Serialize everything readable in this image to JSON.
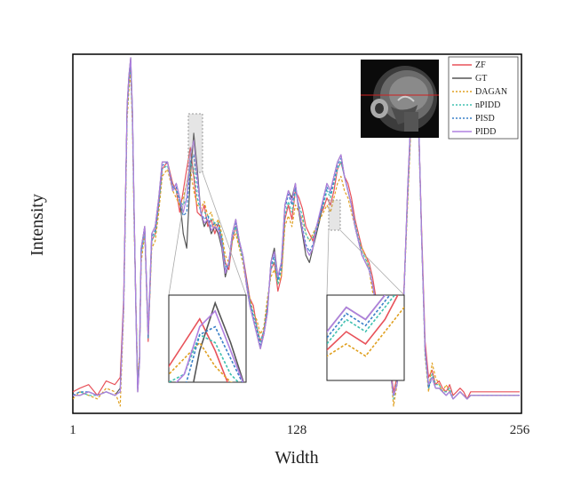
{
  "chart_data": {
    "type": "line",
    "title": "",
    "xlabel": "Width",
    "ylabel": "Intensity",
    "xlim": [
      1,
      256
    ],
    "xticks": [
      "1",
      "128",
      "256"
    ],
    "ylim": [
      0,
      1
    ],
    "grid": false,
    "legend_position": "top-right (inside plot, beside inset MRI image)",
    "inset_image": "sagittal brain MRI slice with horizontal red line marking the profiled row",
    "zoom_insets": 2,
    "x": [
      1,
      5,
      10,
      15,
      20,
      25,
      28,
      30,
      32,
      33,
      34,
      35,
      36,
      37,
      38,
      39,
      40,
      42,
      44,
      46,
      48,
      50,
      52,
      55,
      58,
      60,
      62,
      64,
      66,
      68,
      70,
      72,
      74,
      76,
      78,
      80,
      82,
      84,
      86,
      88,
      90,
      92,
      94,
      96,
      98,
      100,
      102,
      104,
      106,
      108,
      110,
      112,
      114,
      116,
      118,
      120,
      122,
      124,
      126,
      128,
      130,
      132,
      134,
      136,
      138,
      140,
      142,
      144,
      146,
      148,
      150,
      152,
      154,
      156,
      158,
      160,
      162,
      164,
      166,
      168,
      170,
      172,
      174,
      176,
      178,
      180,
      182,
      184,
      186,
      188,
      190,
      192,
      194,
      196,
      198,
      200,
      202,
      204,
      206,
      208,
      210,
      212,
      214,
      216,
      218,
      220,
      222,
      224,
      226,
      228,
      230,
      235,
      240,
      245,
      250,
      256
    ],
    "series": [
      {
        "name": "ZF",
        "color": "#e8525a",
        "dash": "solid",
        "values": [
          0.06,
          0.07,
          0.08,
          0.05,
          0.09,
          0.08,
          0.1,
          0.32,
          0.85,
          0.92,
          0.98,
          0.82,
          0.55,
          0.3,
          0.08,
          0.15,
          0.45,
          0.52,
          0.2,
          0.48,
          0.5,
          0.58,
          0.68,
          0.7,
          0.64,
          0.62,
          0.56,
          0.62,
          0.68,
          0.74,
          0.66,
          0.56,
          0.55,
          0.58,
          0.52,
          0.54,
          0.5,
          0.53,
          0.48,
          0.42,
          0.4,
          0.48,
          0.52,
          0.47,
          0.44,
          0.38,
          0.32,
          0.3,
          0.24,
          0.2,
          0.23,
          0.3,
          0.4,
          0.42,
          0.34,
          0.38,
          0.54,
          0.58,
          0.54,
          0.62,
          0.6,
          0.57,
          0.52,
          0.5,
          0.48,
          0.52,
          0.55,
          0.57,
          0.6,
          0.58,
          0.62,
          0.68,
          0.7,
          0.66,
          0.64,
          0.6,
          0.54,
          0.5,
          0.46,
          0.44,
          0.42,
          0.38,
          0.32,
          0.26,
          0.22,
          0.18,
          0.14,
          0.06,
          0.1,
          0.2,
          0.35,
          0.6,
          0.82,
          0.9,
          0.86,
          0.52,
          0.2,
          0.1,
          0.12,
          0.08,
          0.09,
          0.07,
          0.06,
          0.08,
          0.05,
          0.06,
          0.07,
          0.06,
          0.04,
          0.06,
          0.06,
          0.06,
          0.06,
          0.06,
          0.06,
          0.06
        ]
      },
      {
        "name": "GT",
        "color": "#555555",
        "dash": "solid",
        "values": [
          0.05,
          0.05,
          0.06,
          0.05,
          0.06,
          0.05,
          0.07,
          0.3,
          0.86,
          0.94,
          0.99,
          0.84,
          0.56,
          0.28,
          0.06,
          0.14,
          0.46,
          0.52,
          0.22,
          0.5,
          0.52,
          0.6,
          0.7,
          0.7,
          0.62,
          0.64,
          0.6,
          0.5,
          0.46,
          0.66,
          0.78,
          0.68,
          0.56,
          0.52,
          0.54,
          0.5,
          0.52,
          0.5,
          0.46,
          0.38,
          0.42,
          0.5,
          0.54,
          0.48,
          0.44,
          0.36,
          0.3,
          0.26,
          0.22,
          0.18,
          0.22,
          0.28,
          0.42,
          0.46,
          0.38,
          0.42,
          0.58,
          0.62,
          0.6,
          0.64,
          0.56,
          0.5,
          0.44,
          0.42,
          0.46,
          0.5,
          0.54,
          0.6,
          0.64,
          0.62,
          0.66,
          0.7,
          0.72,
          0.66,
          0.62,
          0.58,
          0.52,
          0.48,
          0.44,
          0.42,
          0.4,
          0.36,
          0.3,
          0.24,
          0.2,
          0.16,
          0.12,
          0.05,
          0.08,
          0.18,
          0.34,
          0.62,
          0.84,
          0.92,
          0.88,
          0.5,
          0.18,
          0.08,
          0.1,
          0.07,
          0.07,
          0.06,
          0.05,
          0.06,
          0.04,
          0.05,
          0.06,
          0.05,
          0.04,
          0.05,
          0.05,
          0.05,
          0.05,
          0.05,
          0.05,
          0.05
        ]
      },
      {
        "name": "DAGAN",
        "color": "#e0a020",
        "dash": "dotted",
        "values": [
          0.04,
          0.06,
          0.05,
          0.04,
          0.07,
          0.06,
          0.02,
          0.28,
          0.82,
          0.9,
          0.95,
          0.8,
          0.52,
          0.3,
          0.1,
          0.16,
          0.42,
          0.5,
          0.22,
          0.46,
          0.48,
          0.56,
          0.66,
          0.68,
          0.62,
          0.6,
          0.58,
          0.6,
          0.64,
          0.68,
          0.62,
          0.58,
          0.57,
          0.59,
          0.55,
          0.56,
          0.52,
          0.54,
          0.5,
          0.44,
          0.42,
          0.48,
          0.5,
          0.46,
          0.42,
          0.36,
          0.32,
          0.28,
          0.26,
          0.22,
          0.24,
          0.32,
          0.38,
          0.4,
          0.36,
          0.38,
          0.52,
          0.55,
          0.52,
          0.58,
          0.56,
          0.54,
          0.5,
          0.48,
          0.5,
          0.52,
          0.54,
          0.56,
          0.58,
          0.56,
          0.6,
          0.64,
          0.66,
          0.62,
          0.6,
          0.56,
          0.52,
          0.48,
          0.46,
          0.44,
          0.4,
          0.34,
          0.3,
          0.26,
          0.22,
          0.18,
          0.14,
          0.02,
          0.08,
          0.2,
          0.34,
          0.58,
          0.8,
          0.88,
          0.84,
          0.5,
          0.16,
          0.06,
          0.14,
          0.1,
          0.08,
          0.06,
          0.08,
          0.06,
          0.04,
          0.05,
          0.06,
          0.05,
          0.04,
          0.05,
          0.05,
          0.05,
          0.05,
          0.05,
          0.05,
          0.05
        ]
      },
      {
        "name": "nPIDD",
        "color": "#40c0b0",
        "dash": "dotted",
        "values": [
          0.05,
          0.06,
          0.05,
          0.05,
          0.06,
          0.05,
          0.06,
          0.3,
          0.84,
          0.92,
          0.97,
          0.82,
          0.54,
          0.29,
          0.08,
          0.15,
          0.44,
          0.51,
          0.21,
          0.48,
          0.5,
          0.58,
          0.68,
          0.69,
          0.63,
          0.62,
          0.59,
          0.58,
          0.6,
          0.7,
          0.68,
          0.6,
          0.56,
          0.56,
          0.55,
          0.54,
          0.53,
          0.53,
          0.49,
          0.41,
          0.41,
          0.49,
          0.52,
          0.47,
          0.43,
          0.37,
          0.31,
          0.28,
          0.24,
          0.2,
          0.23,
          0.3,
          0.4,
          0.43,
          0.36,
          0.4,
          0.55,
          0.59,
          0.56,
          0.62,
          0.58,
          0.55,
          0.5,
          0.48,
          0.49,
          0.52,
          0.55,
          0.58,
          0.62,
          0.6,
          0.64,
          0.68,
          0.7,
          0.66,
          0.62,
          0.58,
          0.53,
          0.49,
          0.45,
          0.43,
          0.41,
          0.36,
          0.31,
          0.25,
          0.21,
          0.17,
          0.13,
          0.04,
          0.09,
          0.19,
          0.34,
          0.6,
          0.82,
          0.9,
          0.86,
          0.5,
          0.17,
          0.07,
          0.11,
          0.08,
          0.08,
          0.06,
          0.06,
          0.07,
          0.04,
          0.05,
          0.06,
          0.05,
          0.04,
          0.05,
          0.05,
          0.05,
          0.05,
          0.05,
          0.05,
          0.05
        ]
      },
      {
        "name": "PISD",
        "color": "#3a80c8",
        "dash": "dotted",
        "values": [
          0.05,
          0.06,
          0.06,
          0.05,
          0.06,
          0.05,
          0.06,
          0.3,
          0.85,
          0.93,
          0.98,
          0.83,
          0.55,
          0.29,
          0.07,
          0.15,
          0.45,
          0.52,
          0.21,
          0.49,
          0.51,
          0.59,
          0.69,
          0.7,
          0.63,
          0.63,
          0.59,
          0.55,
          0.56,
          0.7,
          0.72,
          0.64,
          0.56,
          0.54,
          0.55,
          0.52,
          0.53,
          0.52,
          0.48,
          0.4,
          0.42,
          0.5,
          0.53,
          0.48,
          0.44,
          0.37,
          0.31,
          0.27,
          0.23,
          0.19,
          0.22,
          0.29,
          0.41,
          0.44,
          0.37,
          0.41,
          0.57,
          0.61,
          0.58,
          0.63,
          0.57,
          0.52,
          0.47,
          0.45,
          0.47,
          0.51,
          0.55,
          0.59,
          0.63,
          0.61,
          0.65,
          0.69,
          0.71,
          0.66,
          0.62,
          0.58,
          0.52,
          0.48,
          0.44,
          0.42,
          0.4,
          0.36,
          0.3,
          0.24,
          0.2,
          0.16,
          0.12,
          0.05,
          0.08,
          0.18,
          0.34,
          0.61,
          0.83,
          0.91,
          0.87,
          0.5,
          0.17,
          0.07,
          0.1,
          0.07,
          0.07,
          0.06,
          0.05,
          0.06,
          0.04,
          0.05,
          0.06,
          0.05,
          0.04,
          0.05,
          0.05,
          0.05,
          0.05,
          0.05,
          0.05,
          0.05
        ]
      },
      {
        "name": "PIDD",
        "color": "#b080e0",
        "dash": "solid",
        "values": [
          0.05,
          0.05,
          0.06,
          0.05,
          0.06,
          0.05,
          0.06,
          0.3,
          0.86,
          0.94,
          0.99,
          0.84,
          0.56,
          0.28,
          0.06,
          0.14,
          0.46,
          0.52,
          0.22,
          0.5,
          0.52,
          0.6,
          0.7,
          0.7,
          0.62,
          0.64,
          0.6,
          0.56,
          0.6,
          0.72,
          0.76,
          0.66,
          0.56,
          0.53,
          0.54,
          0.51,
          0.52,
          0.51,
          0.47,
          0.39,
          0.42,
          0.5,
          0.54,
          0.48,
          0.44,
          0.36,
          0.3,
          0.26,
          0.22,
          0.18,
          0.22,
          0.28,
          0.42,
          0.45,
          0.38,
          0.42,
          0.58,
          0.62,
          0.59,
          0.64,
          0.57,
          0.51,
          0.46,
          0.44,
          0.46,
          0.52,
          0.56,
          0.6,
          0.64,
          0.62,
          0.66,
          0.7,
          0.72,
          0.66,
          0.62,
          0.58,
          0.52,
          0.48,
          0.44,
          0.42,
          0.4,
          0.36,
          0.3,
          0.24,
          0.2,
          0.16,
          0.12,
          0.05,
          0.08,
          0.18,
          0.34,
          0.62,
          0.84,
          0.92,
          0.88,
          0.5,
          0.18,
          0.08,
          0.1,
          0.07,
          0.07,
          0.06,
          0.05,
          0.06,
          0.04,
          0.05,
          0.06,
          0.05,
          0.04,
          0.05,
          0.05,
          0.05,
          0.05,
          0.05,
          0.05,
          0.05
        ]
      }
    ]
  }
}
